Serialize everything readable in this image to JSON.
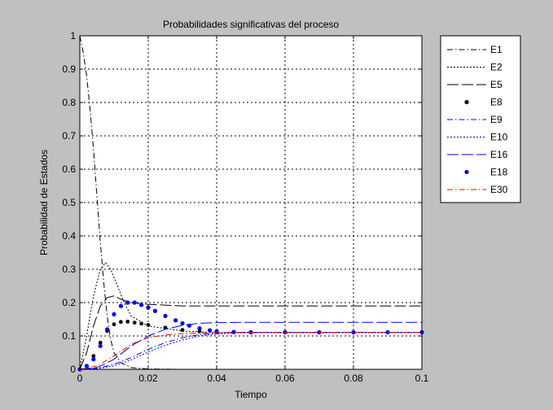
{
  "chart_data": {
    "type": "line",
    "title": "Probabilidades significativas del proceso",
    "xlabel": "Tiempo",
    "ylabel": "Probabilidad de Estados",
    "xlim": [
      0,
      0.1
    ],
    "ylim": [
      0,
      1
    ],
    "grid": true,
    "legend_position": "top-right outside",
    "x_ticks": [
      0,
      0.02,
      0.04,
      0.06,
      0.08,
      0.1
    ],
    "x_tick_labels": [
      "0",
      "0.02",
      "0.04",
      "0.06",
      "0.08",
      "0.1"
    ],
    "y_ticks": [
      0,
      0.1,
      0.2,
      0.3,
      0.4,
      0.5,
      0.6,
      0.7,
      0.8,
      0.9,
      1
    ],
    "y_tick_labels": [
      "0",
      "0.1",
      "0.2",
      "0.3",
      "0.4",
      "0.5",
      "0.6",
      "0.7",
      "0.8",
      "0.9",
      "1"
    ],
    "colors": {
      "background": "#c0c0c0",
      "axes": "#ffffff",
      "grid": "#000000"
    },
    "series": [
      {
        "name": "E1",
        "color": "#000000",
        "style": "dashdot",
        "x": [
          0,
          0.001,
          0.002,
          0.003,
          0.004,
          0.005,
          0.006,
          0.007,
          0.008,
          0.009,
          0.01,
          0.012,
          0.015,
          0.02,
          0.03,
          0.04
        ],
        "y": [
          1.0,
          0.95,
          0.88,
          0.78,
          0.66,
          0.52,
          0.38,
          0.26,
          0.16,
          0.09,
          0.05,
          0.02,
          0.005,
          0.001,
          0,
          0
        ]
      },
      {
        "name": "E2",
        "color": "#000000",
        "style": "dotted",
        "x": [
          0,
          0.002,
          0.004,
          0.006,
          0.0075,
          0.009,
          0.011,
          0.013,
          0.015,
          0.02,
          0.03,
          0.04,
          0.1
        ],
        "y": [
          0,
          0.1,
          0.22,
          0.3,
          0.32,
          0.3,
          0.25,
          0.2,
          0.16,
          0.13,
          0.115,
          0.11,
          0.11
        ]
      },
      {
        "name": "E5",
        "color": "#000000",
        "style": "longdash",
        "x": [
          0,
          0.002,
          0.004,
          0.006,
          0.008,
          0.01,
          0.012,
          0.015,
          0.02,
          0.03,
          0.04,
          0.1
        ],
        "y": [
          0,
          0.05,
          0.13,
          0.19,
          0.215,
          0.22,
          0.21,
          0.2,
          0.195,
          0.19,
          0.19,
          0.19
        ]
      },
      {
        "name": "E8",
        "color": "#000000",
        "style": "markers-black",
        "x": [
          0,
          0.002,
          0.004,
          0.006,
          0.008,
          0.01,
          0.012,
          0.014,
          0.016,
          0.018,
          0.02,
          0.025,
          0.03,
          0.035,
          0.04,
          0.045,
          0.05,
          0.06,
          0.07,
          0.08,
          0.09,
          0.1
        ],
        "y": [
          0,
          0.01,
          0.04,
          0.08,
          0.115,
          0.135,
          0.142,
          0.143,
          0.14,
          0.137,
          0.133,
          0.125,
          0.118,
          0.114,
          0.112,
          0.111,
          0.111,
          0.111,
          0.111,
          0.111,
          0.111,
          0.111
        ]
      },
      {
        "name": "E9",
        "color": "#0000ff",
        "style": "dashdot",
        "x": [
          0,
          0.005,
          0.01,
          0.015,
          0.02,
          0.025,
          0.03,
          0.035,
          0.04,
          0.045,
          0.05,
          0.1
        ],
        "y": [
          0,
          0.003,
          0.015,
          0.035,
          0.06,
          0.08,
          0.095,
          0.104,
          0.109,
          0.111,
          0.111,
          0.111
        ]
      },
      {
        "name": "E10",
        "color": "#0000ff",
        "style": "dotted",
        "x": [
          0,
          0.005,
          0.01,
          0.015,
          0.02,
          0.025,
          0.03,
          0.035,
          0.04,
          0.045,
          0.05,
          0.1
        ],
        "y": [
          0,
          0.002,
          0.01,
          0.028,
          0.052,
          0.072,
          0.088,
          0.1,
          0.106,
          0.109,
          0.11,
          0.111
        ]
      },
      {
        "name": "E16",
        "color": "#0000ff",
        "style": "longdash",
        "x": [
          0,
          0.005,
          0.01,
          0.015,
          0.02,
          0.025,
          0.03,
          0.035,
          0.04,
          0.05,
          0.06,
          0.1
        ],
        "y": [
          0,
          0.005,
          0.03,
          0.07,
          0.1,
          0.12,
          0.132,
          0.138,
          0.14,
          0.141,
          0.141,
          0.141
        ]
      },
      {
        "name": "E18",
        "color": "#0000ff",
        "style": "markers-blue",
        "x": [
          0,
          0.002,
          0.004,
          0.006,
          0.008,
          0.01,
          0.012,
          0.014,
          0.016,
          0.018,
          0.02,
          0.022,
          0.025,
          0.028,
          0.03,
          0.032,
          0.035,
          0.038,
          0.04,
          0.045,
          0.05,
          0.06,
          0.07,
          0.08,
          0.09,
          0.1
        ],
        "y": [
          0,
          0.01,
          0.03,
          0.07,
          0.12,
          0.165,
          0.19,
          0.2,
          0.2,
          0.193,
          0.185,
          0.175,
          0.16,
          0.147,
          0.138,
          0.131,
          0.123,
          0.117,
          0.114,
          0.112,
          0.111,
          0.111,
          0.111,
          0.111,
          0.111,
          0.111
        ]
      },
      {
        "name": "E30",
        "color": "#ff0000",
        "style": "dashdot",
        "x": [
          0,
          0.005,
          0.01,
          0.015,
          0.02,
          0.025,
          0.03,
          0.035,
          0.04,
          0.05,
          0.1
        ],
        "y": [
          0,
          0.01,
          0.04,
          0.075,
          0.095,
          0.103,
          0.107,
          0.109,
          0.11,
          0.111,
          0.111
        ]
      }
    ]
  }
}
